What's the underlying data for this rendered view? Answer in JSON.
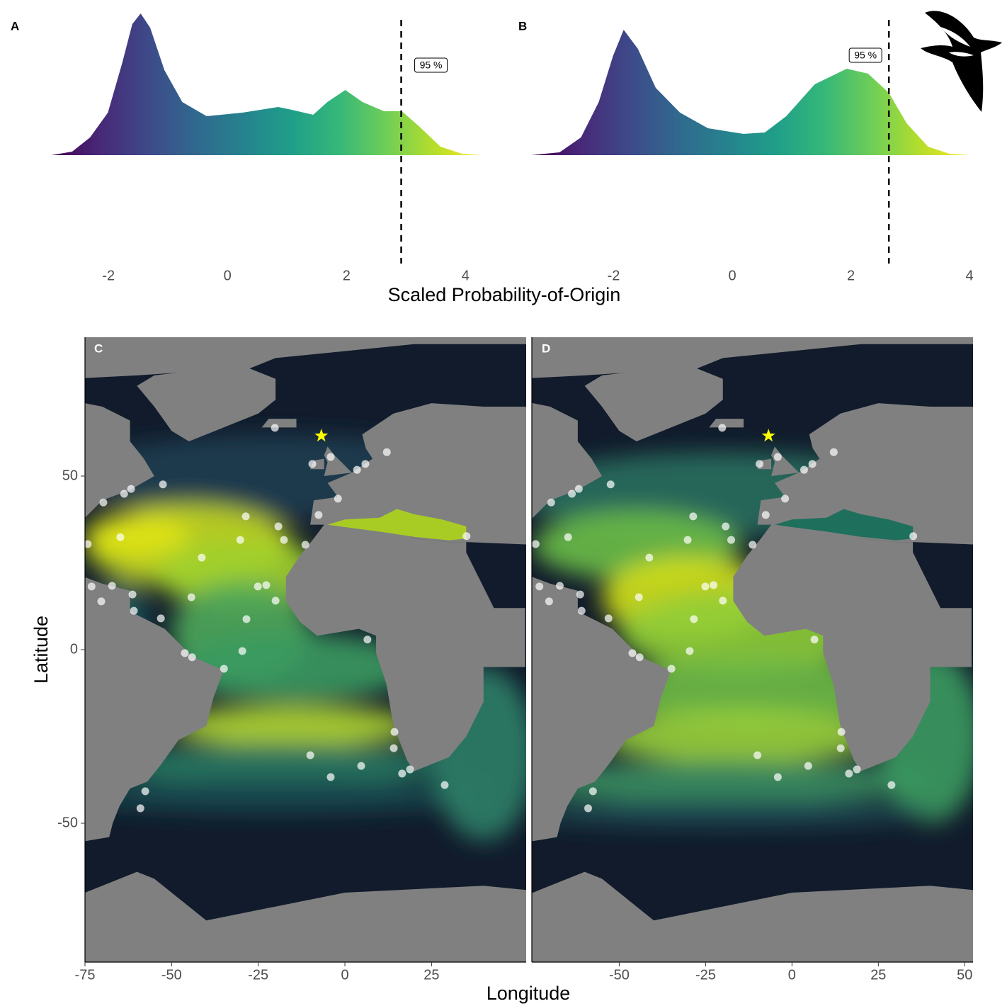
{
  "chart_data": [
    {
      "type": "density",
      "label": "A",
      "xlabel": "Scaled Probability-of-Origin",
      "x": [
        -2.96,
        -2.61,
        -2.31,
        -2.01,
        -1.77,
        -1.6,
        -1.46,
        -1.3,
        -1.06,
        -0.76,
        -0.35,
        0.25,
        0.85,
        1.08,
        1.44,
        1.68,
        1.98,
        2.27,
        2.63,
        2.93,
        3.23,
        3.58,
        3.94,
        4.27
      ],
      "values": [
        0,
        0.025,
        0.125,
        0.3,
        0.65,
        0.925,
        1,
        0.9,
        0.6,
        0.375,
        0.275,
        0.3,
        0.34,
        0.32,
        0.285,
        0.375,
        0.46,
        0.375,
        0.31,
        0.31,
        0.2,
        0.06,
        0.01,
        0
      ],
      "xlim": [
        -3.05,
        4.33
      ],
      "ylim": [
        -0.78,
        1.02
      ],
      "xticks": [
        -2,
        0,
        2,
        4
      ],
      "vline": 2.92,
      "vline_label": "95 %"
    },
    {
      "type": "density",
      "label": "B",
      "x": [
        -3.39,
        -2.91,
        -2.55,
        -2.25,
        -2.01,
        -1.83,
        -1.59,
        -1.29,
        -0.88,
        -0.41,
        0.19,
        0.55,
        0.91,
        1.39,
        1.93,
        2.29,
        2.64,
        2.94,
        3.3,
        3.66,
        4.0
      ],
      "values": [
        0,
        0.02,
        0.125,
        0.375,
        0.7,
        0.885,
        0.75,
        0.475,
        0.3,
        0.19,
        0.15,
        0.16,
        0.275,
        0.5,
        0.61,
        0.575,
        0.44,
        0.225,
        0.06,
        0.01,
        0
      ],
      "xlim": [
        -3.45,
        4.13
      ],
      "ylim": [
        -0.78,
        1.02
      ],
      "xticks": [
        -2,
        0,
        2,
        4
      ],
      "vline": 2.64,
      "vline_label": "95 %"
    },
    {
      "type": "map",
      "label": "C",
      "xlabel": "Longitude",
      "ylabel": "Latitude",
      "xlim": [
        -75,
        52.3
      ],
      "ylim": [
        -90,
        90
      ],
      "xticks": [
        -75,
        -50,
        -25,
        0,
        25
      ],
      "yticks": [
        -50,
        0,
        50
      ],
      "star": {
        "x": -6.8,
        "y": 61.6
      },
      "x": [
        -20.2,
        -9.4,
        -4.1,
        3.5,
        5.9,
        12.1,
        -2.0,
        -7.6,
        -11.4,
        -17.6,
        -19.2,
        -28.6,
        -30.2,
        -41.3,
        -22.7,
        -25.1,
        -20.0,
        -28.4,
        -52.5,
        -61.7,
        -63.7,
        -69.7,
        -64.8,
        -74.2,
        -73.1,
        -67.2,
        -61.3,
        -70.3,
        -60.9,
        -53.1,
        -44.3,
        -46.2,
        -44.1,
        -29.6,
        -34.9,
        6.5,
        14.3,
        14.1,
        18.8,
        16.5,
        28.8,
        -10.0,
        4.7,
        -4.1,
        -57.6,
        -59.0,
        35.1
      ],
      "y": [
        63.9,
        53.5,
        55.5,
        51.8,
        53.5,
        56.9,
        43.5,
        38.8,
        30.2,
        31.6,
        35.5,
        38.4,
        31.6,
        26.5,
        18.6,
        18.2,
        14.1,
        8.8,
        47.6,
        46.3,
        44.9,
        42.4,
        32.4,
        30.4,
        18.2,
        18.4,
        15.9,
        13.9,
        11.2,
        9.0,
        15.1,
        -1.0,
        -2.2,
        -0.4,
        -5.5,
        2.9,
        -23.7,
        -28.4,
        -34.5,
        -35.7,
        -39.0,
        -30.4,
        -33.5,
        -36.7,
        -40.8,
        -45.7,
        32.7
      ]
    },
    {
      "type": "map",
      "label": "D",
      "xlim": [
        -75.3,
        52.4
      ],
      "ylim": [
        -90,
        90
      ],
      "xticks": [
        -50,
        -25,
        0,
        25,
        50
      ],
      "star": {
        "x": -6.8,
        "y": 61.6
      },
      "x": [
        -20.2,
        -9.4,
        -4.1,
        3.5,
        5.9,
        12.1,
        -2.0,
        -7.6,
        -11.4,
        -17.6,
        -19.2,
        -28.6,
        -30.2,
        -41.3,
        -22.7,
        -25.1,
        -20.0,
        -28.4,
        -52.5,
        -61.7,
        -63.7,
        -69.7,
        -64.8,
        -74.2,
        -73.1,
        -67.2,
        -61.3,
        -70.3,
        -60.9,
        -53.1,
        -44.3,
        -46.2,
        -44.1,
        -29.6,
        -34.9,
        6.5,
        14.3,
        14.1,
        18.8,
        16.5,
        28.8,
        -10.0,
        4.7,
        -4.1,
        -57.6,
        -59.0,
        35.1
      ],
      "y": [
        63.9,
        53.5,
        55.5,
        51.8,
        53.5,
        56.9,
        43.5,
        38.8,
        30.2,
        31.6,
        35.5,
        38.4,
        31.6,
        26.5,
        18.6,
        18.2,
        14.1,
        8.8,
        47.6,
        46.3,
        44.9,
        42.4,
        32.4,
        30.4,
        18.2,
        18.4,
        15.9,
        13.9,
        11.2,
        9.0,
        15.1,
        -1.0,
        -2.2,
        -0.4,
        -5.5,
        2.9,
        -23.7,
        -28.4,
        -34.5,
        -35.7,
        -39.0,
        -30.4,
        -33.5,
        -36.7,
        -40.8,
        -45.7,
        32.7
      ]
    }
  ]
}
